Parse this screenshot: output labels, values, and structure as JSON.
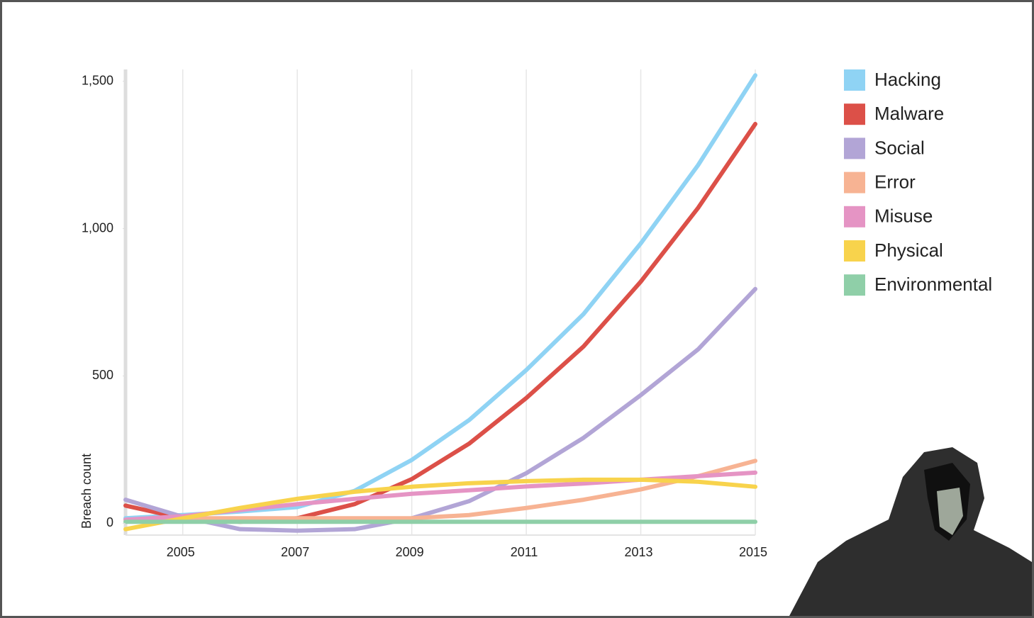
{
  "chart_data": {
    "type": "line",
    "y_label": "Breach count",
    "x": [
      2004,
      2005,
      2006,
      2007,
      2008,
      2009,
      2010,
      2011,
      2012,
      2013,
      2014,
      2015
    ],
    "xlim": [
      2004,
      2015
    ],
    "xticks": [
      2005,
      2007,
      2009,
      2011,
      2013,
      2015
    ],
    "ylim": [
      -40,
      1540
    ],
    "yticks": [
      0,
      500,
      {
        "value": 1000,
        "label": "1,000"
      },
      {
        "value": 1500,
        "label": "1,500"
      }
    ],
    "grid": true,
    "legend": "right",
    "series": [
      {
        "name": "Hacking",
        "color": "#8fd3f4",
        "values": [
          17,
          28,
          40,
          55,
          110,
          215,
          350,
          520,
          710,
          950,
          1215,
          1520
        ]
      },
      {
        "name": "Malware",
        "color": "#dc5048",
        "values": [
          60,
          17,
          5,
          17,
          65,
          150,
          270,
          425,
          600,
          820,
          1070,
          1355
        ]
      },
      {
        "name": "Social",
        "color": "#b2a5d6",
        "values": [
          80,
          22,
          -20,
          -25,
          -20,
          17,
          75,
          170,
          290,
          435,
          590,
          795
        ]
      },
      {
        "name": "Error",
        "color": "#f7b393",
        "values": [
          12,
          17,
          17,
          17,
          17,
          17,
          28,
          52,
          80,
          115,
          160,
          212
        ]
      },
      {
        "name": "Misuse",
        "color": "#e594c4",
        "values": [
          12,
          24,
          45,
          65,
          83,
          100,
          112,
          125,
          135,
          148,
          160,
          172
        ]
      },
      {
        "name": "Physical",
        "color": "#f8d34c",
        "values": [
          -20,
          17,
          52,
          83,
          107,
          124,
          136,
          143,
          148,
          148,
          141,
          124
        ]
      },
      {
        "name": "Environmental",
        "color": "#8fcfa8",
        "values": [
          5,
          5,
          5,
          5,
          5,
          5,
          5,
          5,
          5,
          5,
          5,
          5
        ]
      }
    ]
  }
}
